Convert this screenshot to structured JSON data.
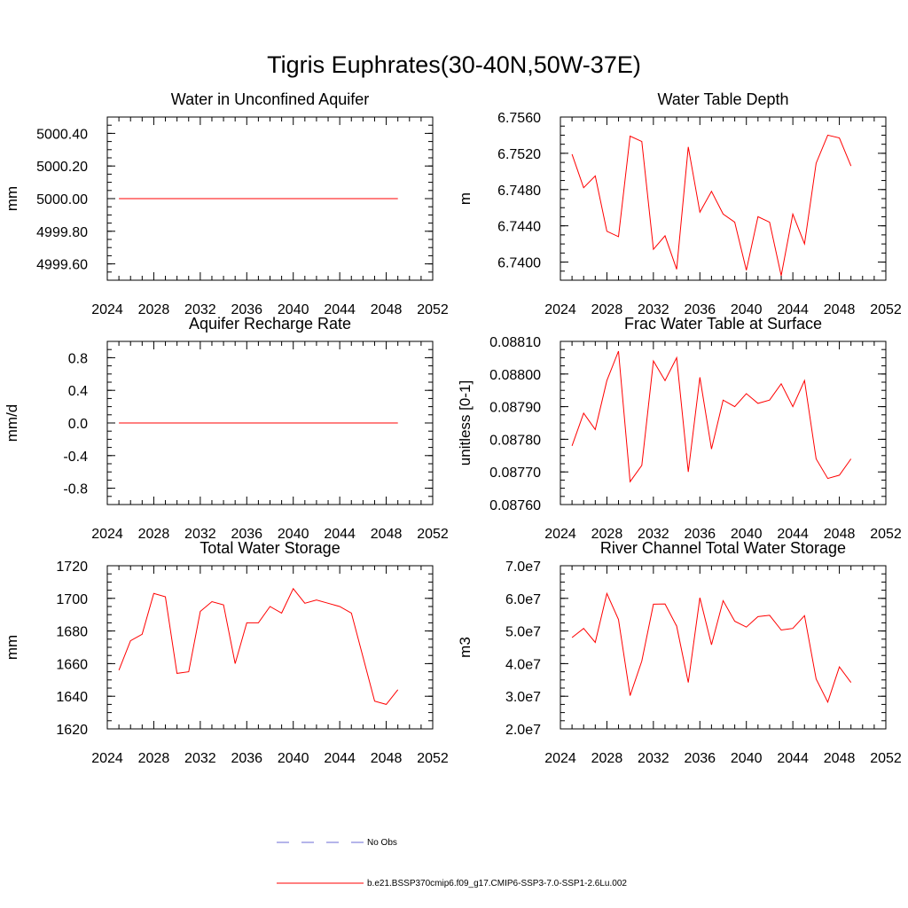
{
  "figure_title": "Tigris Euphrates(30-40N,50W-37E)",
  "legend": {
    "obs_label": "No Obs",
    "model_label": "b.e21.BSSP370cmip6.f09_g17.CMIP6-SSP3-7.0-SSP1-2.6Lu.002",
    "obs_color": "#6b6bd6",
    "model_color": "#ff0000"
  },
  "chart_data": [
    {
      "type": "line",
      "title": "Water in Unconfined Aquifer",
      "ylabel": "mm",
      "xlim": [
        2024,
        2052
      ],
      "ylim": [
        4999.5,
        5000.5
      ],
      "xticks": [
        "2024",
        "2028",
        "2032",
        "2036",
        "2040",
        "2044",
        "2048",
        "2052"
      ],
      "yticks": [
        {
          "v": 4999.6,
          "t": "4999.60"
        },
        {
          "v": 4999.8,
          "t": "4999.80"
        },
        {
          "v": 5000.0,
          "t": "5000.00"
        },
        {
          "v": 5000.2,
          "t": "5000.20"
        },
        {
          "v": 5000.4,
          "t": "5000.40"
        }
      ],
      "yminor": 0.05,
      "x": [
        2025,
        2026,
        2027,
        2028,
        2029,
        2030,
        2031,
        2032,
        2033,
        2034,
        2035,
        2036,
        2037,
        2038,
        2039,
        2040,
        2041,
        2042,
        2043,
        2044,
        2045,
        2046,
        2047,
        2048,
        2049
      ],
      "series": [
        {
          "values": [
            5000,
            5000,
            5000,
            5000,
            5000,
            5000,
            5000,
            5000,
            5000,
            5000,
            5000,
            5000,
            5000,
            5000,
            5000,
            5000,
            5000,
            5000,
            5000,
            5000,
            5000,
            5000,
            5000,
            5000,
            5000
          ]
        }
      ]
    },
    {
      "type": "line",
      "title": "Water Table Depth",
      "ylabel": "m",
      "xlim": [
        2024,
        2052
      ],
      "ylim": [
        6.738,
        6.756
      ],
      "xticks": [
        "2024",
        "2028",
        "2032",
        "2036",
        "2040",
        "2044",
        "2048",
        "2052"
      ],
      "yticks": [
        {
          "v": 6.74,
          "t": "6.7400"
        },
        {
          "v": 6.744,
          "t": "6.7440"
        },
        {
          "v": 6.748,
          "t": "6.7480"
        },
        {
          "v": 6.752,
          "t": "6.7520"
        },
        {
          "v": 6.756,
          "t": "6.7560"
        }
      ],
      "yminor": 0.001,
      "x": [
        2025,
        2026,
        2027,
        2028,
        2029,
        2030,
        2031,
        2032,
        2033,
        2034,
        2035,
        2036,
        2037,
        2038,
        2039,
        2040,
        2041,
        2042,
        2043,
        2044,
        2045,
        2046,
        2047,
        2048,
        2049
      ],
      "series": [
        {
          "values": [
            6.7519,
            6.7482,
            6.7495,
            6.7434,
            6.7428,
            6.7539,
            6.7533,
            6.7414,
            6.7429,
            6.7392,
            6.7527,
            6.7455,
            6.7478,
            6.7453,
            6.7444,
            6.7391,
            6.745,
            6.7444,
            6.7385,
            6.7453,
            6.742,
            6.7509,
            6.754,
            6.7537,
            6.7506
          ]
        }
      ]
    },
    {
      "type": "line",
      "title": "Aquifer Recharge Rate",
      "ylabel": "mm/d",
      "xlim": [
        2024,
        2052
      ],
      "ylim": [
        -1.0,
        1.0
      ],
      "xticks": [
        "2024",
        "2028",
        "2032",
        "2036",
        "2040",
        "2044",
        "2048",
        "2052"
      ],
      "yticks": [
        {
          "v": -0.8,
          "t": "-0.8"
        },
        {
          "v": -0.4,
          "t": "-0.4"
        },
        {
          "v": 0.0,
          "t": "0.0"
        },
        {
          "v": 0.4,
          "t": "0.4"
        },
        {
          "v": 0.8,
          "t": "0.8"
        }
      ],
      "yminor": 0.1,
      "x": [
        2025,
        2026,
        2027,
        2028,
        2029,
        2030,
        2031,
        2032,
        2033,
        2034,
        2035,
        2036,
        2037,
        2038,
        2039,
        2040,
        2041,
        2042,
        2043,
        2044,
        2045,
        2046,
        2047,
        2048,
        2049
      ],
      "series": [
        {
          "values": [
            0,
            0,
            0,
            0,
            0,
            0,
            0,
            0,
            0,
            0,
            0,
            0,
            0,
            0,
            0,
            0,
            0,
            0,
            0,
            0,
            0,
            0,
            0,
            0,
            0
          ]
        }
      ]
    },
    {
      "type": "line",
      "title": "Frac Water Table at Surface",
      "ylabel": "unitless [0-1]",
      "xlim": [
        2024,
        2052
      ],
      "ylim": [
        0.0876,
        0.0881
      ],
      "xticks": [
        "2024",
        "2028",
        "2032",
        "2036",
        "2040",
        "2044",
        "2048",
        "2052"
      ],
      "yticks": [
        {
          "v": 0.0876,
          "t": "0.08760"
        },
        {
          "v": 0.0877,
          "t": "0.08770"
        },
        {
          "v": 0.0878,
          "t": "0.08780"
        },
        {
          "v": 0.0879,
          "t": "0.08790"
        },
        {
          "v": 0.088,
          "t": "0.08800"
        },
        {
          "v": 0.0881,
          "t": "0.08810"
        }
      ],
      "yminor": 2.5e-05,
      "x": [
        2025,
        2026,
        2027,
        2028,
        2029,
        2030,
        2031,
        2032,
        2033,
        2034,
        2035,
        2036,
        2037,
        2038,
        2039,
        2040,
        2041,
        2042,
        2043,
        2044,
        2045,
        2046,
        2047,
        2048,
        2049
      ],
      "series": [
        {
          "values": [
            0.08778,
            0.08788,
            0.08783,
            0.08798,
            0.08807,
            0.08767,
            0.08772,
            0.08804,
            0.08798,
            0.08805,
            0.0877,
            0.08799,
            0.08777,
            0.08792,
            0.0879,
            0.08794,
            0.08791,
            0.08792,
            0.08797,
            0.0879,
            0.08798,
            0.08774,
            0.08768,
            0.08769,
            0.08774
          ]
        }
      ]
    },
    {
      "type": "line",
      "title": "Total Water Storage",
      "ylabel": "mm",
      "xlim": [
        2024,
        2052
      ],
      "ylim": [
        1620,
        1720
      ],
      "xticks": [
        "2024",
        "2028",
        "2032",
        "2036",
        "2040",
        "2044",
        "2048",
        "2052"
      ],
      "yticks": [
        {
          "v": 1620,
          "t": "1620"
        },
        {
          "v": 1640,
          "t": "1640"
        },
        {
          "v": 1660,
          "t": "1660"
        },
        {
          "v": 1680,
          "t": "1680"
        },
        {
          "v": 1700,
          "t": "1700"
        },
        {
          "v": 1720,
          "t": "1720"
        }
      ],
      "yminor": 5,
      "x": [
        2025,
        2026,
        2027,
        2028,
        2029,
        2030,
        2031,
        2032,
        2033,
        2034,
        2035,
        2036,
        2037,
        2038,
        2039,
        2040,
        2041,
        2042,
        2043,
        2044,
        2045,
        2046,
        2047,
        2048,
        2049
      ],
      "series": [
        {
          "values": [
            1656,
            1674,
            1678,
            1703,
            1701,
            1654,
            1655,
            1692,
            1698,
            1696,
            1660,
            1685,
            1685,
            1695,
            1691,
            1706,
            1697,
            1699,
            1697,
            1695,
            1691,
            1664,
            1637,
            1635,
            1644
          ]
        }
      ]
    },
    {
      "type": "line",
      "title": "River Channel Total Water Storage",
      "ylabel": "m3",
      "xlim": [
        2024,
        2052
      ],
      "ylim": [
        20000000,
        70000000
      ],
      "xticks": [
        "2024",
        "2028",
        "2032",
        "2036",
        "2040",
        "2044",
        "2048",
        "2052"
      ],
      "yticks": [
        {
          "v": 20000000,
          "t": "2.0e7"
        },
        {
          "v": 30000000,
          "t": "3.0e7"
        },
        {
          "v": 40000000,
          "t": "4.0e7"
        },
        {
          "v": 50000000,
          "t": "5.0e7"
        },
        {
          "v": 60000000,
          "t": "6.0e7"
        },
        {
          "v": 70000000,
          "t": "7.0e7"
        }
      ],
      "yminor": 2500000,
      "x": [
        2025,
        2026,
        2027,
        2028,
        2029,
        2030,
        2031,
        2032,
        2033,
        2034,
        2035,
        2036,
        2037,
        2038,
        2039,
        2040,
        2041,
        2042,
        2043,
        2044,
        2045,
        2046,
        2047,
        2048,
        2049
      ],
      "series": [
        {
          "values": [
            48000000,
            50800000,
            46500000,
            61500000,
            53500000,
            30200000,
            40800000,
            58200000,
            58300000,
            51500000,
            34200000,
            60200000,
            45800000,
            59300000,
            53000000,
            51200000,
            54400000,
            54800000,
            50300000,
            50800000,
            54700000,
            35300000,
            28200000,
            39000000,
            34200000
          ]
        }
      ]
    }
  ]
}
